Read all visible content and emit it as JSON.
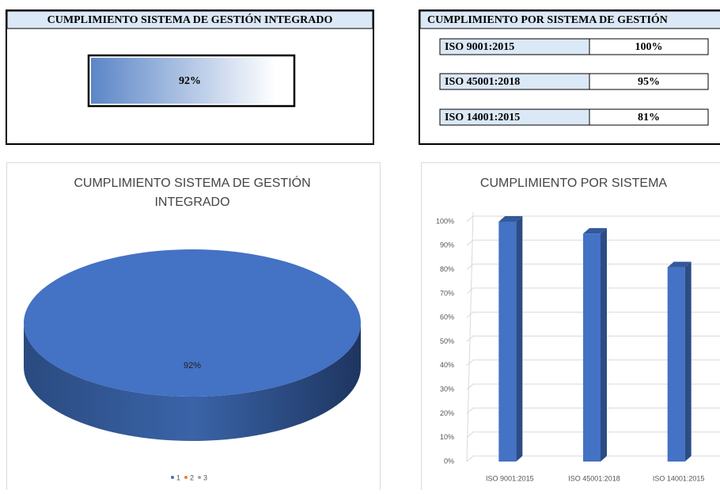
{
  "summary": {
    "title": "CUMPLIMIENTO SISTEMA DE GESTIÓN INTEGRADO",
    "value": 92,
    "value_label": "92%"
  },
  "systems_table": {
    "title": "CUMPLIMIENTO POR SISTEMA DE GESTIÓN",
    "rows": [
      [
        "ISO 9001:2015",
        "100%"
      ],
      [
        "ISO 45001:2018",
        "95%"
      ],
      [
        "ISO 14001:2015",
        "81%"
      ]
    ]
  },
  "chart_data": [
    {
      "type": "pie",
      "title": "CUMPLIMIENTO SISTEMA DE GESTIÓN INTEGRADO",
      "categories": [
        "1",
        "2",
        "3"
      ],
      "values": [
        92,
        null,
        null
      ],
      "value_labels": [
        "92%",
        null,
        null
      ],
      "colors": [
        "#4472c4",
        "#ed7d31",
        "#a5a5a5"
      ],
      "legend": "bottom"
    },
    {
      "type": "bar",
      "title": "CUMPLIMIENTO POR SISTEMA",
      "categories": [
        "ISO 9001:2015",
        "ISO 45001:2018",
        "ISO 14001:2015"
      ],
      "values": [
        100,
        95,
        81
      ],
      "color": "#4472c4",
      "ylim": [
        0,
        100
      ],
      "yticks": [
        {
          "value": 0,
          "label": "0%"
        },
        {
          "value": 10,
          "label": "10%"
        },
        {
          "value": 20,
          "label": "20%"
        },
        {
          "value": 30,
          "label": "30%"
        },
        {
          "value": 40,
          "label": "40%"
        },
        {
          "value": 50,
          "label": "50%"
        },
        {
          "value": 60,
          "label": "60%"
        },
        {
          "value": 70,
          "label": "70%"
        },
        {
          "value": 80,
          "label": "80%"
        },
        {
          "value": 90,
          "label": "90%"
        },
        {
          "value": 100,
          "label": "100%"
        }
      ],
      "grid": true
    }
  ]
}
